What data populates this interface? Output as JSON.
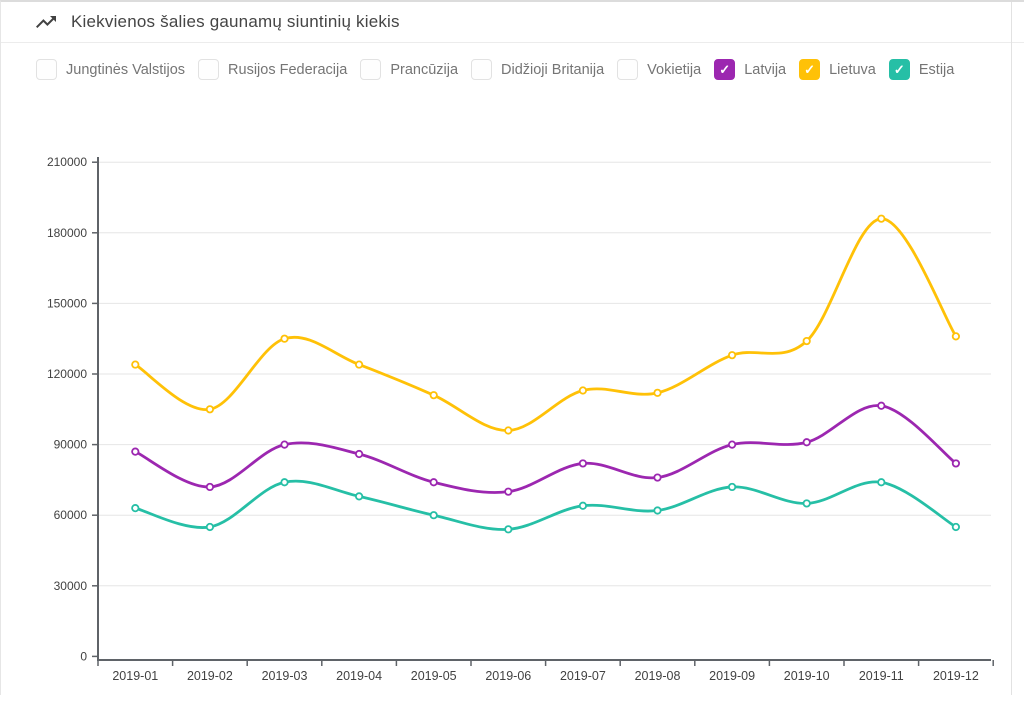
{
  "header": {
    "title": "Kiekvienos šalies gaunamų siuntinių kiekis",
    "icon": "trending-up-icon"
  },
  "filters": {
    "items": [
      {
        "label": "Jungtinės Valstijos",
        "checked": false,
        "color": null
      },
      {
        "label": "Rusijos Federacija",
        "checked": false,
        "color": null
      },
      {
        "label": "Prancūzija",
        "checked": false,
        "color": null
      },
      {
        "label": "Didžioji Britanija",
        "checked": false,
        "color": null
      },
      {
        "label": "Vokietija",
        "checked": false,
        "color": null
      },
      {
        "label": "Latvija",
        "checked": true,
        "color": "#9c27b0"
      },
      {
        "label": "Lietuva",
        "checked": true,
        "color": "#ffc107"
      },
      {
        "label": "Estija",
        "checked": true,
        "color": "#26bfa6"
      }
    ]
  },
  "colors": {
    "latvija": "#9c27b0",
    "lietuva": "#ffc107",
    "estija": "#26bfa6",
    "grid": "#e6e6e6",
    "axis": "#5f6368",
    "tick_label": "#424242",
    "filter_label": "#757575"
  },
  "chart_data": {
    "type": "line",
    "title": "Kiekvienos šalies gaunamų siuntinių kiekis",
    "xlabel": "",
    "ylabel": "",
    "categories": [
      "2019-01",
      "2019-02",
      "2019-03",
      "2019-04",
      "2019-05",
      "2019-06",
      "2019-07",
      "2019-08",
      "2019-09",
      "2019-10",
      "2019-11",
      "2019-12"
    ],
    "series": [
      {
        "name": "Latvija",
        "color": "#9c27b0",
        "values": [
          87000,
          72000,
          90000,
          86000,
          74000,
          70000,
          82000,
          76000,
          90000,
          91000,
          106500,
          82000
        ]
      },
      {
        "name": "Lietuva",
        "color": "#ffc107",
        "values": [
          124000,
          105000,
          135000,
          124000,
          111000,
          96000,
          113000,
          112000,
          128000,
          134000,
          186000,
          136000
        ]
      },
      {
        "name": "Estija",
        "color": "#26bfa6",
        "values": [
          63000,
          55000,
          74000,
          68000,
          60000,
          54000,
          64000,
          62000,
          72000,
          65000,
          74000,
          55000
        ]
      }
    ],
    "ylim": [
      0,
      210000
    ],
    "yticks": [
      0,
      30000,
      60000,
      90000,
      120000,
      150000,
      180000,
      210000
    ],
    "grid": true,
    "legend_position": "top",
    "point_style": "open-circle"
  }
}
